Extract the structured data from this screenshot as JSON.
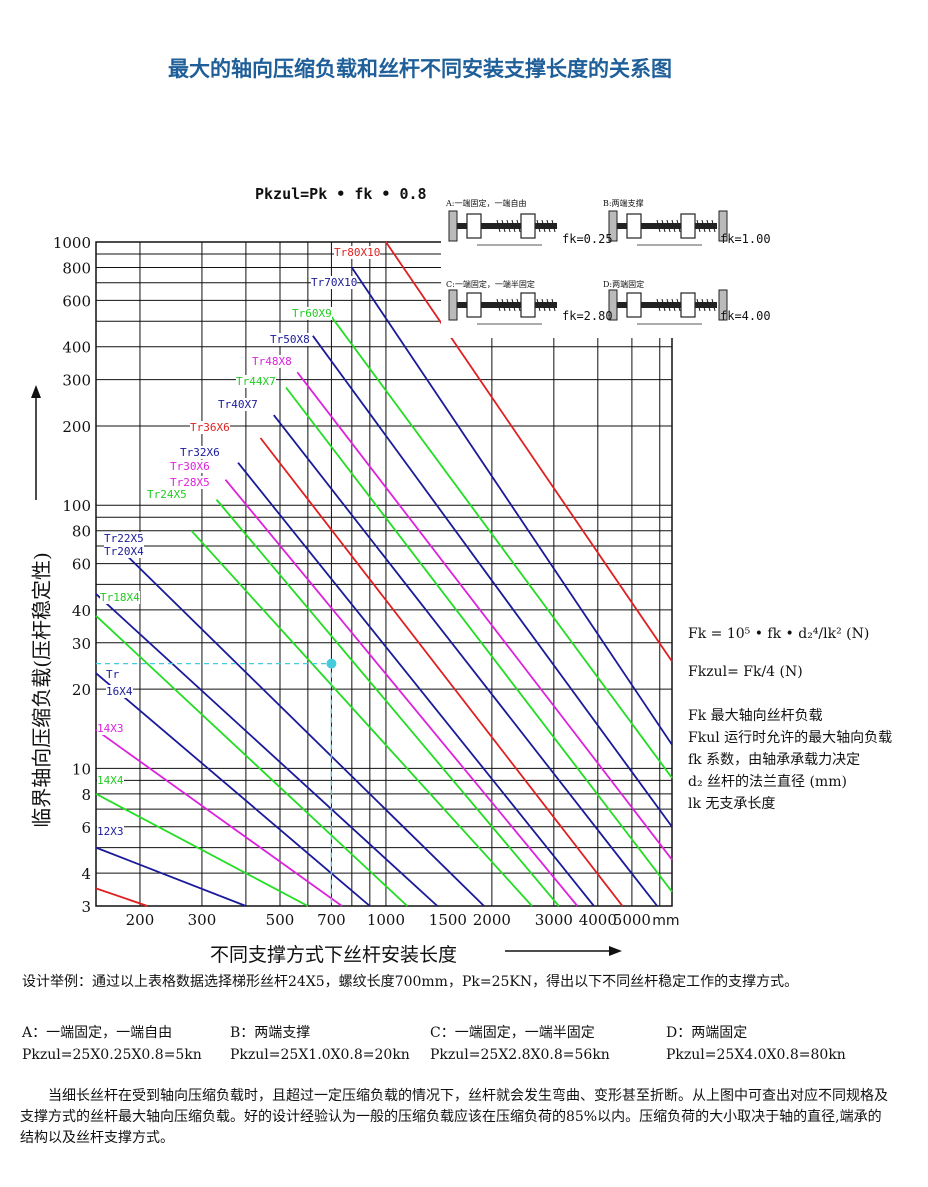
{
  "title": "最大的轴向压缩负载和丝杆不同安装支撑长度的关系图",
  "formula": "Pkzul=Pk • fk • 0.8",
  "chart_data": {
    "type": "line",
    "x_scale": "log",
    "y_scale": "log",
    "xlim": [
      150,
      6500
    ],
    "ylim": [
      3,
      1000
    ],
    "xlabel": "不同支撑方式下丝杆安装长度",
    "x_unit": "mm",
    "ylabel": "临界轴向压缩负载(压杆稳定性)",
    "x_ticks": [
      200,
      300,
      500,
      700,
      1000,
      1500,
      2000,
      3000,
      4000,
      5000
    ],
    "y_ticks": [
      3,
      4,
      6,
      8,
      10,
      20,
      30,
      40,
      60,
      80,
      100,
      200,
      300,
      400,
      600,
      800,
      1000
    ],
    "grid": true,
    "series": [
      {
        "name": "Tr80X10",
        "color": "#e02020",
        "x": [
          1000,
          6500
        ],
        "y": [
          1000,
          25.5
        ]
      },
      {
        "name": "Tr70X10",
        "color": "#1a1a9a",
        "x": [
          800,
          6500
        ],
        "y": [
          800,
          12.3
        ]
      },
      {
        "name": "Tr60X9",
        "color": "#22dd22",
        "x": [
          700,
          6500
        ],
        "y": [
          520,
          9.2
        ]
      },
      {
        "name": "Tr50X8",
        "color": "#1a1a9a",
        "x": [
          620,
          6500
        ],
        "y": [
          440,
          6.0
        ]
      },
      {
        "name": "Tr48X8",
        "color": "#dd22dd",
        "x": [
          560,
          6500
        ],
        "y": [
          320,
          4.5
        ]
      },
      {
        "name": "Tr44X7",
        "color": "#22dd22",
        "x": [
          520,
          6500
        ],
        "y": [
          280,
          3.4
        ]
      },
      {
        "name": "Tr40X7",
        "color": "#1a1a9a",
        "x": [
          480,
          5900
        ],
        "y": [
          220,
          3.0
        ]
      },
      {
        "name": "Tr36X6",
        "color": "#e02020",
        "x": [
          440,
          4700
        ],
        "y": [
          180,
          3.0
        ]
      },
      {
        "name": "Tr32X6",
        "color": "#1a1a9a",
        "x": [
          380,
          3900
        ],
        "y": [
          145,
          3.0
        ]
      },
      {
        "name": "Tr30X6",
        "color": "#dd22dd",
        "x": [
          350,
          3500
        ],
        "y": [
          125,
          3.0
        ]
      },
      {
        "name": "Tr28X5",
        "color": "#22dd22",
        "x": [
          330,
          3100
        ],
        "y": [
          105,
          3.0
        ]
      },
      {
        "name": "Tr24X5",
        "color": "#22dd22",
        "x": [
          280,
          2600
        ],
        "y": [
          80,
          3.0
        ]
      },
      {
        "name": "Tr22X5",
        "color": "#1a1a9a",
        "x": [
          180,
          1900
        ],
        "y": [
          66,
          3.0
        ]
      },
      {
        "name": "Tr20X4",
        "color": "#1a1a9a",
        "x": [
          150,
          1400
        ],
        "y": [
          46,
          3.0
        ]
      },
      {
        "name": "Tr18X4",
        "color": "#22dd22",
        "x": [
          150,
          1150
        ],
        "y": [
          38,
          3.0
        ]
      },
      {
        "name": "Tr16X4",
        "color": "#1a1a9a",
        "x": [
          150,
          900
        ],
        "y": [
          23,
          3.0
        ]
      },
      {
        "name": "14X3",
        "color": "#dd22dd",
        "x": [
          150,
          750
        ],
        "y": [
          14,
          3.0
        ]
      },
      {
        "name": "14X4",
        "color": "#22dd22",
        "x": [
          150,
          600
        ],
        "y": [
          8,
          3.0
        ]
      },
      {
        "name": "12X3",
        "color": "#1a1a9a",
        "x": [
          150,
          400
        ],
        "y": [
          5,
          3.0
        ]
      },
      {
        "name": "",
        "color": "#e02020",
        "x": [
          150,
          210
        ],
        "y": [
          3.5,
          3.0
        ]
      }
    ],
    "annotation": {
      "x": 700,
      "y": 25,
      "color": "#44ccdd"
    }
  },
  "labels": {
    "tr80": "Tr80X10",
    "tr70": "Tr70X10",
    "tr60": "Tr60X9",
    "tr50": "Tr50X8",
    "tr48": "Tr48X8",
    "tr44": "Tr44X7",
    "tr40": "Tr40X7",
    "tr36": "Tr36X6",
    "tr32": "Tr32X6",
    "tr30": "Tr30X6",
    "tr28": "Tr28X5",
    "tr24": "Tr24X5",
    "tr22": "Tr22X5",
    "tr20": "Tr20X4",
    "tr18": "Tr18X4",
    "tr16a": "Tr",
    "tr16b": "16X4",
    "s14x3": "14X3",
    "s14x4": "14X4",
    "s12x3": "12X3"
  },
  "inset": {
    "a_cap": "A:一端固定，一端自由",
    "b_cap": "B:两端支撑",
    "c_cap": "C:一端固定，一端半固定",
    "d_cap": "D:两端固定",
    "fa": "fk=0.25",
    "fb": "fk=1.00",
    "fc": "fk=2.80",
    "fd": "fk=4.00"
  },
  "legend": {
    "f1": "Fk  = 10⁵ • fk • d₂⁴/lk² (N)",
    "f2": "Fkzul= Fk/4 (N)",
    "d1": "Fk   最大轴向丝杆负载",
    "d2": "Fkul  运行时允许的最大轴向负载",
    "d3": "fk   系数，由轴承承载力决定",
    "d4": "d₂   丝杆的法兰直径 (mm)",
    "d5": "lk   无支承长度"
  },
  "example": {
    "intro": "设计举例：通过以上表格数据选择梯形丝杆24X5，螺纹长度700mm，Pk=25KN，得出以下不同丝杆稳定工作的支撑方式。",
    "a_label": "A：一端固定，一端自由",
    "b_label": "B：两端支撑",
    "c_label": "C：一端固定，一端半固定",
    "d_label": "D：两端固定",
    "a_calc": "Pkzul=25X0.25X0.8=5kn",
    "b_calc": "Pkzul=25X1.0X0.8=20kn",
    "c_calc": "Pkzul=25X2.8X0.8=56kn",
    "d_calc": "Pkzul=25X4.0X0.8=80kn"
  },
  "paragraph": "当细长丝杆在受到轴向压缩负载时，且超过一定压缩负载的情况下，丝杆就会发生弯曲、变形甚至折断。从上图中可查出对应不同规格及支撑方式的丝杆最大轴向压缩负载。好的设计经验认为一般的压缩负载应该在压缩负荷的85%以内。压缩负荷的大小取决于轴的直径,端承的结构以及丝杆支撑方式。"
}
